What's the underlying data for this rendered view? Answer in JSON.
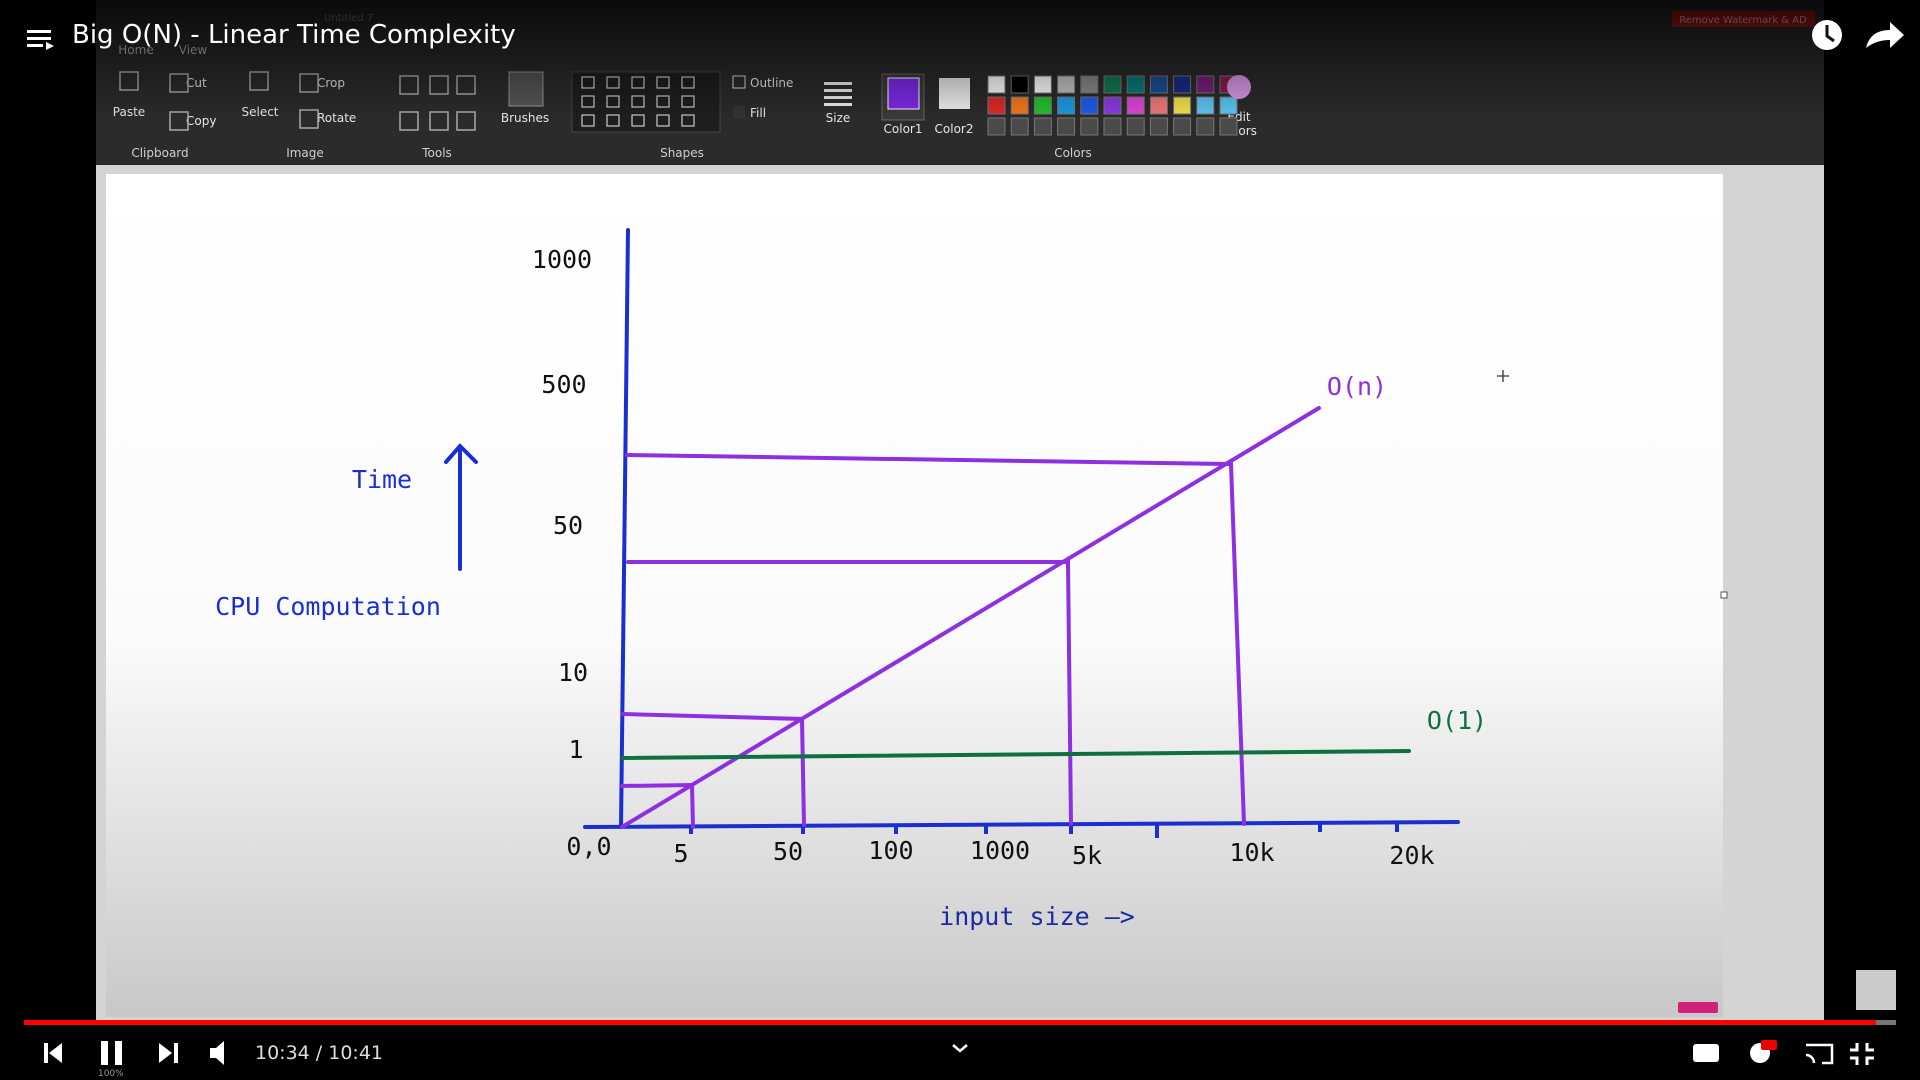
{
  "video": {
    "title": "Big O(N) - Linear Time Complexity",
    "time": "10:34 / 10:41"
  },
  "paint": {
    "document": "Untitled 7",
    "tabs": [
      "Home",
      "View"
    ],
    "watermark": "Remove Watermark & AD",
    "ribbon": {
      "paste": "Paste",
      "cut": "Cut",
      "copy": "Copy",
      "select": "Select",
      "crop": "Crop",
      "rotate": "Rotate",
      "brushes": "Brushes",
      "outline": "Outline",
      "fill": "Fill",
      "size": "Size",
      "color1": "Color1",
      "color2": "Color2",
      "edit_colors": [
        "Edit",
        "colors"
      ]
    },
    "groups": [
      "Clipboard",
      "Image",
      "Tools",
      "Shapes",
      "Colors"
    ],
    "zoom": "100%"
  },
  "drawing": {
    "y_labels": [
      "1000",
      "500",
      "50",
      "10",
      "1"
    ],
    "origin": "0,0",
    "x_labels": [
      "5",
      "50",
      "100",
      "1000",
      "5k",
      "10k",
      "20k"
    ],
    "y_title_top": "Time",
    "y_title": "CPU Computation",
    "x_title": "input size —>",
    "series": [
      "O(n)",
      "O(1)"
    ]
  }
}
